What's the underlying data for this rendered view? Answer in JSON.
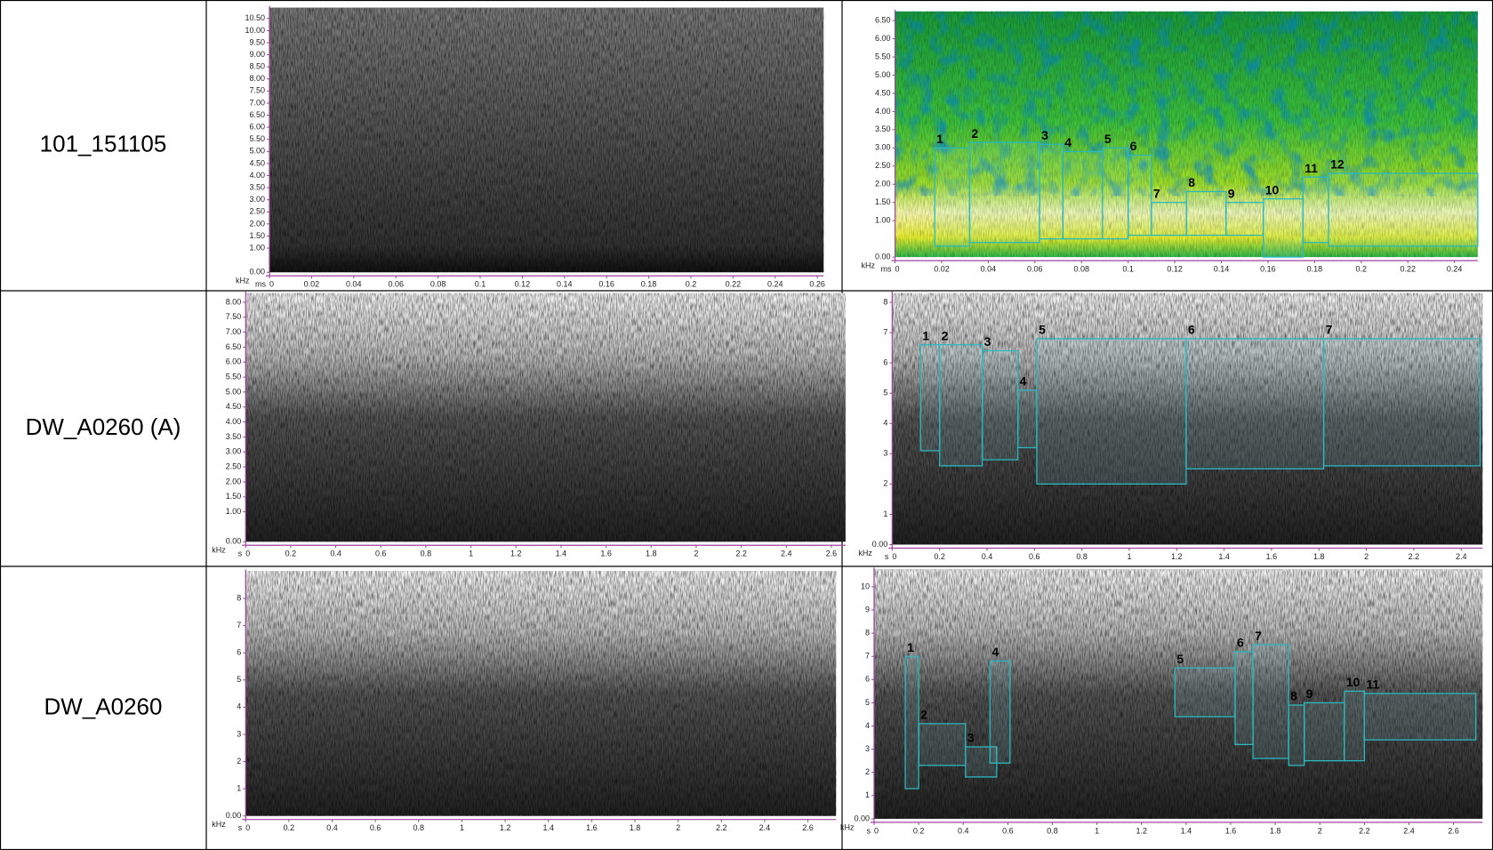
{
  "rows": [
    {
      "label": "101_151105",
      "charts": [
        {
          "type": "spectrogram",
          "colormap": "gray-dark",
          "x_unit": "ms",
          "y_unit": "kHz",
          "xlim": [
            0,
            0.263
          ],
          "ylim": [
            0,
            10.95
          ],
          "xticks": [
            0,
            0.02,
            0.04,
            0.06,
            0.08,
            0.1,
            0.12,
            0.14,
            0.16,
            0.18,
            0.2,
            0.22,
            0.24,
            0.26
          ],
          "yticks": [
            {
              "value": 0,
              "label": "0.00"
            },
            {
              "value": 1,
              "label": "1.00"
            },
            {
              "value": 1.5,
              "label": "1.50"
            },
            {
              "value": 2,
              "label": "2.00"
            },
            {
              "value": 2.5,
              "label": "2.50"
            },
            {
              "value": 3,
              "label": "3.00"
            },
            {
              "value": 3.5,
              "label": "3.50"
            },
            {
              "value": 4,
              "label": "4.00"
            },
            {
              "value": 4.5,
              "label": "4.50"
            },
            {
              "value": 5,
              "label": "5.00"
            },
            {
              "value": 5.5,
              "label": "5.50"
            },
            {
              "value": 6,
              "label": "6.00"
            },
            {
              "value": 6.5,
              "label": "6.50"
            },
            {
              "value": 7,
              "label": "7.00"
            },
            {
              "value": 7.5,
              "label": "7.50"
            },
            {
              "value": 8,
              "label": "8.00"
            },
            {
              "value": 8.5,
              "label": "8.50"
            },
            {
              "value": 9,
              "label": "9.00"
            },
            {
              "value": 9.5,
              "label": "9.50"
            },
            {
              "value": 10,
              "label": "10.00"
            },
            {
              "value": 10.5,
              "label": "10.50"
            }
          ],
          "boxes": []
        },
        {
          "type": "spectrogram",
          "colormap": "green",
          "x_unit": "ms",
          "y_unit": "kHz",
          "xlim": [
            0,
            0.25
          ],
          "ylim": [
            0,
            6.75
          ],
          "xticks": [
            0,
            0.02,
            0.04,
            0.06,
            0.08,
            0.1,
            0.12,
            0.14,
            0.16,
            0.18,
            0.2,
            0.22,
            0.24
          ],
          "yticks": [
            {
              "value": 0,
              "label": "0.00"
            },
            {
              "value": 1,
              "label": "1.00"
            },
            {
              "value": 1.5,
              "label": "1.50"
            },
            {
              "value": 2,
              "label": "2.00"
            },
            {
              "value": 2.5,
              "label": "2.50"
            },
            {
              "value": 3,
              "label": "3.00"
            },
            {
              "value": 3.5,
              "label": "3.50"
            },
            {
              "value": 4,
              "label": "4.00"
            },
            {
              "value": 4.5,
              "label": "4.50"
            },
            {
              "value": 5,
              "label": "5.00"
            },
            {
              "value": 5.5,
              "label": "5.50"
            },
            {
              "value": 6,
              "label": "6.00"
            },
            {
              "value": 6.5,
              "label": "6.50"
            }
          ],
          "boxes": [
            {
              "label": "1",
              "x": [
                0.017,
                0.032
              ],
              "y": [
                0.3,
                3.0
              ]
            },
            {
              "label": "2",
              "x": [
                0.032,
                0.062
              ],
              "y": [
                0.4,
                3.15
              ]
            },
            {
              "label": "3",
              "x": [
                0.062,
                0.072
              ],
              "y": [
                0.5,
                3.1
              ]
            },
            {
              "label": "4",
              "x": [
                0.072,
                0.089
              ],
              "y": [
                0.5,
                2.9
              ]
            },
            {
              "label": "5",
              "x": [
                0.089,
                0.1
              ],
              "y": [
                0.5,
                3.0
              ]
            },
            {
              "label": "6",
              "x": [
                0.1,
                0.11
              ],
              "y": [
                0.6,
                2.8
              ]
            },
            {
              "label": "7",
              "x": [
                0.11,
                0.125
              ],
              "y": [
                0.6,
                1.5
              ]
            },
            {
              "label": "8",
              "x": [
                0.125,
                0.142
              ],
              "y": [
                0.6,
                1.8
              ]
            },
            {
              "label": "9",
              "x": [
                0.142,
                0.158
              ],
              "y": [
                0.6,
                1.5
              ]
            },
            {
              "label": "10",
              "x": [
                0.158,
                0.175
              ],
              "y": [
                0.0,
                1.6
              ]
            },
            {
              "label": "11",
              "x": [
                0.175,
                0.186
              ],
              "y": [
                0.4,
                2.2
              ]
            },
            {
              "label": "12",
              "x": [
                0.186,
                0.25
              ],
              "y": [
                0.3,
                2.3
              ]
            }
          ]
        }
      ]
    },
    {
      "label": "DW_A0260 (A)",
      "charts": [
        {
          "type": "spectrogram",
          "colormap": "gray",
          "x_unit": "s",
          "y_unit": "kHz",
          "xlim": [
            0,
            2.663
          ],
          "ylim": [
            0,
            8.3
          ],
          "xticks": [
            0,
            0.2,
            0.4,
            0.6,
            0.8,
            1,
            1.2,
            1.4,
            1.6,
            1.8,
            2,
            2.2,
            2.4,
            2.6
          ],
          "yticks": [
            {
              "value": 0,
              "label": "0.00"
            },
            {
              "value": 1,
              "label": "1.00"
            },
            {
              "value": 1.5,
              "label": "1.50"
            },
            {
              "value": 2,
              "label": "2.00"
            },
            {
              "value": 2.5,
              "label": "2.50"
            },
            {
              "value": 3,
              "label": "3.00"
            },
            {
              "value": 3.5,
              "label": "3.50"
            },
            {
              "value": 4,
              "label": "4.00"
            },
            {
              "value": 4.5,
              "label": "4.50"
            },
            {
              "value": 5,
              "label": "5.00"
            },
            {
              "value": 5.5,
              "label": "5.50"
            },
            {
              "value": 6,
              "label": "6.00"
            },
            {
              "value": 6.5,
              "label": "6.50"
            },
            {
              "value": 7,
              "label": "7.00"
            },
            {
              "value": 7.5,
              "label": "7.50"
            },
            {
              "value": 8,
              "label": "8.00"
            }
          ],
          "boxes": []
        },
        {
          "type": "spectrogram",
          "colormap": "gray",
          "x_unit": "s",
          "y_unit": "kHz",
          "xlim": [
            0,
            2.49
          ],
          "ylim": [
            0,
            8.3
          ],
          "xticks": [
            0,
            0.2,
            0.4,
            0.6,
            0.8,
            1,
            1.2,
            1.4,
            1.6,
            1.8,
            2,
            2.2,
            2.4
          ],
          "yticks": [
            {
              "value": 0,
              "label": "0.00"
            },
            1,
            2,
            3,
            4,
            5,
            6,
            7,
            8
          ],
          "boxes": [
            {
              "label": "1",
              "x": [
                0.12,
                0.2
              ],
              "y": [
                3.1,
                6.6
              ]
            },
            {
              "label": "2",
              "x": [
                0.2,
                0.38
              ],
              "y": [
                2.6,
                6.6
              ]
            },
            {
              "label": "3",
              "x": [
                0.38,
                0.53
              ],
              "y": [
                2.8,
                6.4
              ]
            },
            {
              "label": "4",
              "x": [
                0.53,
                0.61
              ],
              "y": [
                3.2,
                5.1
              ]
            },
            {
              "label": "5",
              "x": [
                0.61,
                1.24
              ],
              "y": [
                2.0,
                6.8
              ]
            },
            {
              "label": "6",
              "x": [
                1.24,
                1.82
              ],
              "y": [
                2.5,
                6.8
              ]
            },
            {
              "label": "7",
              "x": [
                1.82,
                2.48
              ],
              "y": [
                2.6,
                6.8
              ]
            }
          ]
        }
      ]
    },
    {
      "label": "DW_A0260",
      "charts": [
        {
          "type": "spectrogram",
          "colormap": "gray",
          "x_unit": "s",
          "y_unit": "kHz",
          "xlim": [
            0,
            2.73
          ],
          "ylim": [
            0,
            9.0
          ],
          "xticks": [
            0,
            0.2,
            0.4,
            0.6,
            0.8,
            1,
            1.2,
            1.4,
            1.6,
            1.8,
            2,
            2.2,
            2.4,
            2.6
          ],
          "yticks": [
            {
              "value": 0,
              "label": "0.00"
            },
            1,
            2,
            3,
            4,
            5,
            6,
            7,
            8
          ],
          "boxes": []
        },
        {
          "type": "spectrogram",
          "colormap": "gray",
          "x_unit": "s",
          "y_unit": "kHz",
          "xlim": [
            0,
            2.73
          ],
          "ylim": [
            0,
            10.75
          ],
          "xticks": [
            0,
            0.2,
            0.4,
            0.6,
            0.8,
            1,
            1.2,
            1.4,
            1.6,
            1.8,
            2,
            2.2,
            2.4,
            2.6
          ],
          "yticks": [
            {
              "value": 0,
              "label": "0.00"
            },
            1,
            2,
            3,
            4,
            5,
            6,
            7,
            8,
            9,
            10
          ],
          "boxes": [
            {
              "label": "1",
              "x": [
                0.14,
                0.2
              ],
              "y": [
                1.3,
                7.0
              ]
            },
            {
              "label": "2",
              "x": [
                0.2,
                0.41
              ],
              "y": [
                2.3,
                4.1
              ]
            },
            {
              "label": "3",
              "x": [
                0.41,
                0.55
              ],
              "y": [
                1.8,
                3.1
              ]
            },
            {
              "label": "4",
              "x": [
                0.52,
                0.61
              ],
              "y": [
                2.4,
                6.8
              ]
            },
            {
              "label": "5",
              "x": [
                1.35,
                1.62
              ],
              "y": [
                4.4,
                6.5
              ]
            },
            {
              "label": "6",
              "x": [
                1.62,
                1.7
              ],
              "y": [
                3.2,
                7.2
              ]
            },
            {
              "label": "7",
              "x": [
                1.7,
                1.86
              ],
              "y": [
                2.6,
                7.5
              ]
            },
            {
              "label": "8",
              "x": [
                1.86,
                1.93
              ],
              "y": [
                2.3,
                4.9
              ]
            },
            {
              "label": "9",
              "x": [
                1.93,
                2.11
              ],
              "y": [
                2.5,
                5.0
              ]
            },
            {
              "label": "10",
              "x": [
                2.11,
                2.2
              ],
              "y": [
                2.5,
                5.5
              ]
            },
            {
              "label": "11",
              "x": [
                2.2,
                2.7
              ],
              "y": [
                3.4,
                5.4
              ]
            }
          ]
        }
      ]
    }
  ]
}
